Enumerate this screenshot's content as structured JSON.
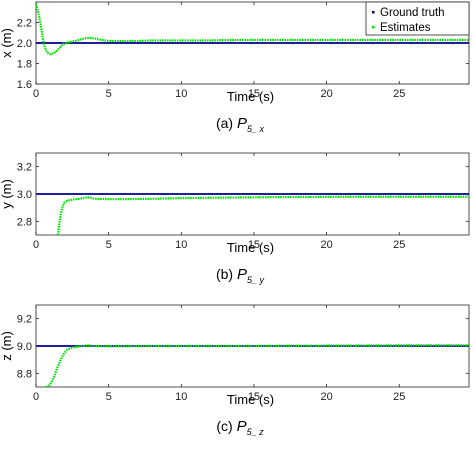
{
  "legend": {
    "ground_truth": "Ground truth",
    "estimates": "Estimates"
  },
  "colors": {
    "ground_truth": "#00008b",
    "estimates": "#00e600",
    "axis": "#262626"
  },
  "chart_data": [
    {
      "type": "line",
      "xlabel": "Time (s)",
      "ylabel": "x (m)",
      "caption_prefix": "(a)",
      "caption_main": "P",
      "caption_sub": "5_x",
      "xlim": [
        0,
        29.8
      ],
      "ylim": [
        1.6,
        2.4
      ],
      "xticks": [
        0,
        5,
        10,
        15,
        20,
        25
      ],
      "yticks": [
        1.6,
        1.8,
        2.0,
        2.2
      ],
      "legend_placement": "top-right",
      "series": [
        {
          "name": "Ground truth",
          "x": [
            0,
            29.8
          ],
          "y": [
            2.0,
            2.0
          ]
        },
        {
          "name": "Estimates",
          "x": [
            0,
            0.15,
            0.3,
            0.45,
            0.6,
            0.8,
            1.0,
            1.2,
            1.4,
            1.6,
            1.8,
            2.0,
            2.3,
            2.7,
            3.2,
            3.6,
            4.0,
            4.5,
            5.0,
            6.0,
            7.0,
            8.0,
            10,
            12,
            14,
            16,
            18,
            20,
            22,
            24,
            26,
            28,
            29.8
          ],
          "y": [
            2.38,
            2.3,
            2.2,
            2.06,
            1.95,
            1.9,
            1.89,
            1.9,
            1.92,
            1.95,
            1.98,
            2.0,
            2.01,
            2.02,
            2.04,
            2.05,
            2.045,
            2.03,
            2.02,
            2.02,
            2.02,
            2.025,
            2.025,
            2.025,
            2.03,
            2.03,
            2.03,
            2.03,
            2.03,
            2.03,
            2.03,
            2.03,
            2.03
          ]
        }
      ]
    },
    {
      "type": "line",
      "xlabel": "Time (s)",
      "ylabel": "y (m)",
      "caption_prefix": "(b)",
      "caption_main": "P",
      "caption_sub": "5_y",
      "xlim": [
        0,
        29.8
      ],
      "ylim": [
        2.7,
        3.3
      ],
      "xticks": [
        0,
        5,
        10,
        15,
        20,
        25
      ],
      "yticks": [
        2.8,
        3.0,
        3.2
      ],
      "series": [
        {
          "name": "Ground truth",
          "x": [
            0,
            29.8
          ],
          "y": [
            3.0,
            3.0
          ]
        },
        {
          "name": "Estimates",
          "x": [
            1.5,
            1.6,
            1.7,
            1.8,
            1.9,
            2.0,
            2.1,
            2.3,
            2.6,
            3.0,
            3.4,
            3.7,
            4.0,
            5.0,
            6.0,
            8.0,
            10,
            14,
            18,
            22,
            26,
            29.8
          ],
          "y": [
            2.7,
            2.78,
            2.85,
            2.9,
            2.93,
            2.94,
            2.95,
            2.955,
            2.96,
            2.965,
            2.975,
            2.975,
            2.965,
            2.962,
            2.962,
            2.965,
            2.97,
            2.975,
            2.978,
            2.98,
            2.98,
            2.98
          ]
        }
      ]
    },
    {
      "type": "line",
      "xlabel": "Time (s)",
      "ylabel": "z (m)",
      "caption_prefix": "(c)",
      "caption_main": "P",
      "caption_sub": "5_z",
      "xlim": [
        0,
        29.8
      ],
      "ylim": [
        8.7,
        9.3
      ],
      "xticks": [
        0,
        5,
        10,
        15,
        20,
        25
      ],
      "yticks": [
        8.8,
        9.0,
        9.2
      ],
      "series": [
        {
          "name": "Ground truth",
          "x": [
            0,
            29.8
          ],
          "y": [
            9.0,
            9.0
          ]
        },
        {
          "name": "Estimates",
          "x": [
            0.7,
            0.9,
            1.1,
            1.3,
            1.5,
            1.7,
            1.9,
            2.1,
            2.4,
            2.8,
            3.2,
            3.6,
            4.0,
            5.0,
            6.0,
            8.0,
            10,
            14,
            18,
            22,
            26,
            29.8
          ],
          "y": [
            8.7,
            8.71,
            8.74,
            8.79,
            8.85,
            8.9,
            8.94,
            8.97,
            8.985,
            8.995,
            9.0,
            9.005,
            9.0,
            8.998,
            8.998,
            9.0,
            9.0,
            9.0,
            9.002,
            9.003,
            9.005,
            9.005
          ]
        }
      ]
    }
  ]
}
